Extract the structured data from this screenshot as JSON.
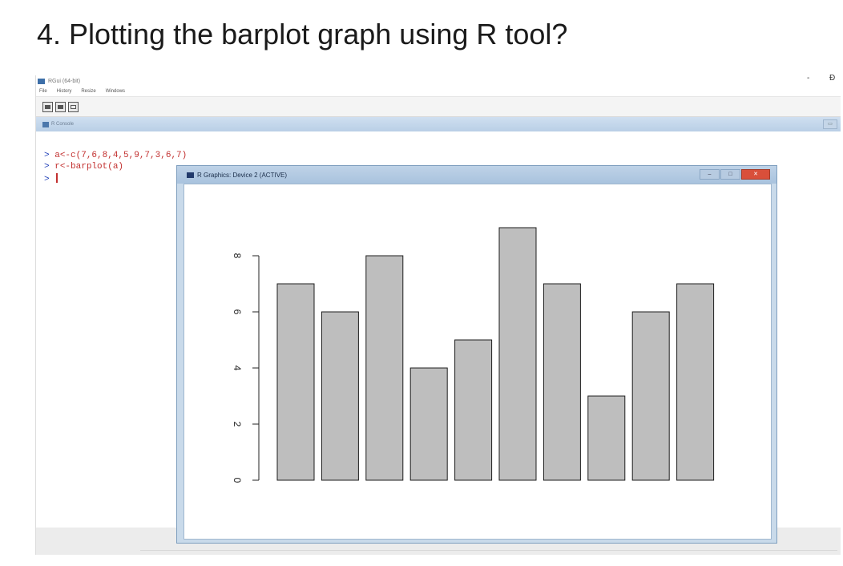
{
  "heading": "4. Plotting the barplot graph using R tool?",
  "rgui": {
    "title": "RGui (64-bit)",
    "window_controls": {
      "minimize": "-",
      "maximize": "Ɖ"
    },
    "menu": [
      "File",
      "History",
      "Resize",
      "Windows"
    ],
    "toolbar": [
      {
        "icon": "open-icon"
      },
      {
        "icon": "print-icon"
      },
      {
        "icon": "window-icon"
      }
    ],
    "console": {
      "title": "R Console",
      "lines": [
        {
          "prompt": ">",
          "text": "a<-c(7,6,8,4,5,9,7,3,6,7)"
        },
        {
          "prompt": ">",
          "text": "r<-barplot(a)"
        },
        {
          "prompt": ">",
          "text": ""
        }
      ]
    }
  },
  "graphics_device": {
    "title": "R Graphics: Device 2 (ACTIVE)"
  },
  "chart_data": {
    "type": "bar",
    "values": [
      7,
      6,
      8,
      4,
      5,
      9,
      7,
      3,
      6,
      7
    ],
    "ylim": [
      0,
      9
    ],
    "yticks": [
      "0",
      "2",
      "4",
      "6",
      "8"
    ],
    "bar_color": "#bebebe",
    "grid": false
  }
}
